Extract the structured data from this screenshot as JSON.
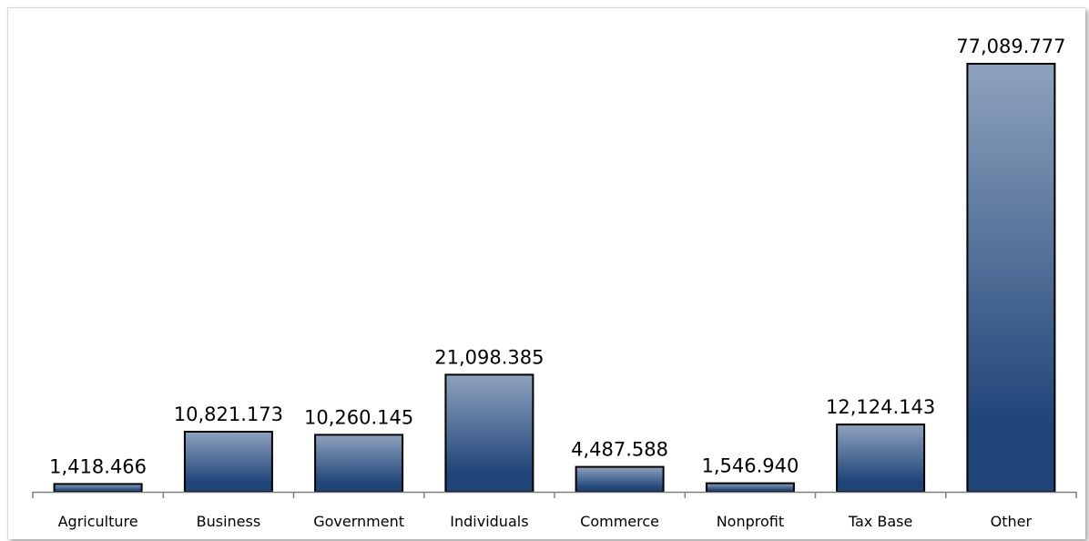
{
  "chart_data": {
    "type": "bar",
    "title": "",
    "xlabel": "",
    "ylabel": "",
    "categories": [
      "Agriculture",
      "Business",
      "Government",
      "Individuals",
      "Commerce",
      "Nonprofit",
      "Tax Base",
      "Other"
    ],
    "values": [
      1418.466,
      10821.173,
      10260.145,
      21098.385,
      4487.588,
      1546.94,
      12124.143,
      77089.777
    ],
    "data_labels": [
      "1,418.466",
      "10,821.173",
      "10,260.145",
      "21,098.385",
      "4,487.588",
      "1,546.940",
      "12,124.143",
      "77,089.777"
    ],
    "ylim": [
      0,
      80000
    ],
    "grid": false,
    "legend": "none",
    "colors": {
      "bar_top": "#8ea2bd",
      "bar_bottom": "#1f4478",
      "bar_stroke": "#000000",
      "axis": "#7f7f7f"
    }
  }
}
